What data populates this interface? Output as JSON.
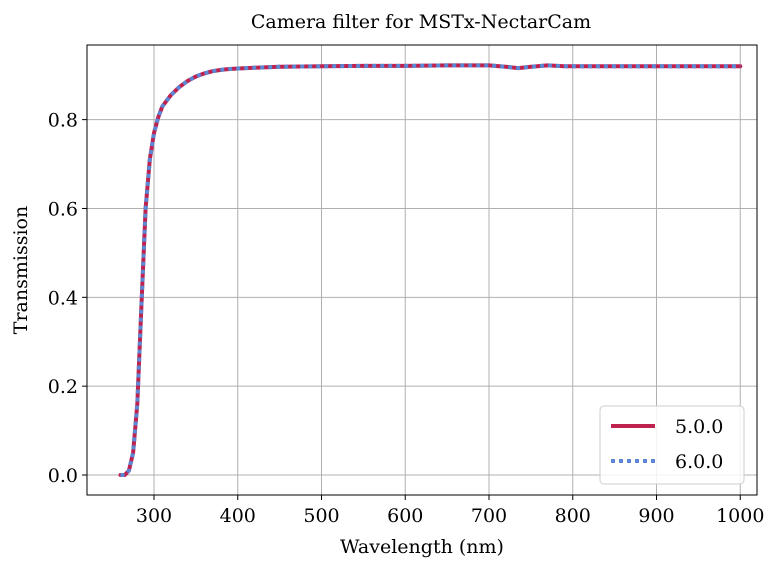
{
  "chart_data": {
    "type": "line",
    "title": "Camera filter for MSTx-NectarCam",
    "xlabel": "Wavelength (nm)",
    "ylabel": "Transmission",
    "xlim": [
      220,
      1020
    ],
    "ylim": [
      -0.045,
      0.968
    ],
    "xticks": [
      300,
      400,
      500,
      600,
      700,
      800,
      900,
      1000
    ],
    "xtick_labels": [
      "300",
      "400",
      "500",
      "600",
      "700",
      "800",
      "900",
      "1000"
    ],
    "yticks": [
      0.0,
      0.2,
      0.4,
      0.6,
      0.8
    ],
    "ytick_labels": [
      "0.0",
      "0.2",
      "0.4",
      "0.6",
      "0.8"
    ],
    "grid": true,
    "legend_position": "lower-right",
    "series": [
      {
        "name": "5.0.0",
        "color": "#c0224f",
        "style": "solid",
        "x": [
          260,
          265,
          270,
          275,
          280,
          285,
          290,
          295,
          300,
          305,
          310,
          320,
          330,
          340,
          350,
          360,
          370,
          380,
          390,
          400,
          420,
          450,
          500,
          550,
          600,
          650,
          700,
          720,
          735,
          750,
          770,
          790,
          800,
          850,
          900,
          950,
          1000
        ],
        "y": [
          0.0,
          0.0,
          0.01,
          0.05,
          0.16,
          0.38,
          0.6,
          0.71,
          0.77,
          0.805,
          0.83,
          0.855,
          0.873,
          0.887,
          0.897,
          0.904,
          0.909,
          0.912,
          0.914,
          0.915,
          0.917,
          0.919,
          0.92,
          0.921,
          0.921,
          0.922,
          0.922,
          0.919,
          0.916,
          0.919,
          0.922,
          0.92,
          0.92,
          0.92,
          0.92,
          0.92,
          0.92
        ]
      },
      {
        "name": "6.0.0",
        "color": "#5b87d4",
        "style": "dotted",
        "x": [
          260,
          265,
          270,
          275,
          280,
          285,
          290,
          295,
          300,
          305,
          310,
          320,
          330,
          340,
          350,
          360,
          370,
          380,
          390,
          400,
          420,
          450,
          500,
          550,
          600,
          650,
          700,
          720,
          735,
          750,
          770,
          790,
          800,
          850,
          900,
          950,
          1000
        ],
        "y": [
          0.0,
          0.0,
          0.01,
          0.05,
          0.16,
          0.38,
          0.6,
          0.71,
          0.77,
          0.805,
          0.83,
          0.855,
          0.873,
          0.887,
          0.897,
          0.904,
          0.909,
          0.912,
          0.914,
          0.915,
          0.917,
          0.919,
          0.92,
          0.921,
          0.921,
          0.922,
          0.922,
          0.919,
          0.916,
          0.919,
          0.922,
          0.92,
          0.92,
          0.92,
          0.92,
          0.92,
          0.92
        ]
      }
    ]
  }
}
